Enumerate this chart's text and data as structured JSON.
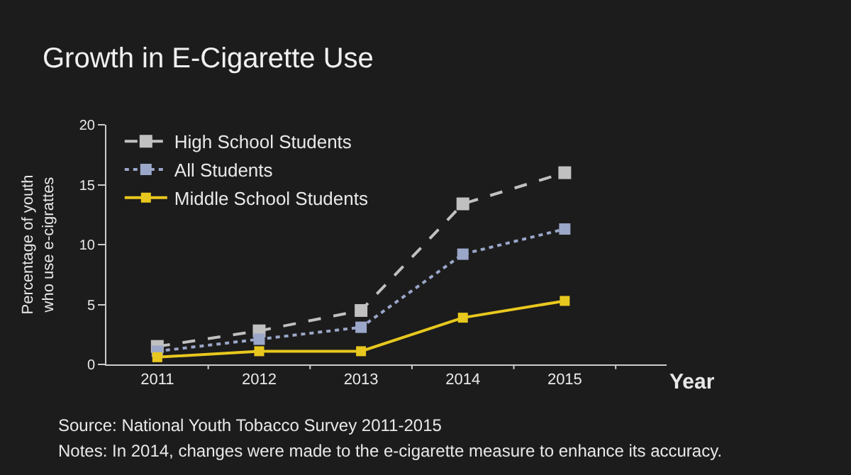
{
  "chart_data": {
    "type": "line",
    "title": "Growth in E-Cigarette Use",
    "xlabel": "Year",
    "ylabel": "Percentage of youth\nwho use e-cigrattes",
    "categories": [
      "2011",
      "2012",
      "2013",
      "2014",
      "2015"
    ],
    "series": [
      {
        "name": "High School Students",
        "color": "#c0c0c0",
        "line_style": "dashed",
        "values": [
          1.5,
          2.8,
          4.5,
          13.4,
          16.0
        ]
      },
      {
        "name": "All Students",
        "color": "#9ba7c9",
        "line_style": "dotted",
        "values": [
          1.1,
          2.1,
          3.1,
          9.2,
          11.3
        ]
      },
      {
        "name": "Middle School Students",
        "color": "#e8c81e",
        "line_style": "solid",
        "values": [
          0.6,
          1.1,
          1.1,
          3.9,
          5.3
        ]
      }
    ],
    "ylim": [
      0,
      20
    ],
    "yticks": [
      0,
      5,
      10,
      15,
      20
    ],
    "grid": false,
    "legend": "top left",
    "marker": "square",
    "annotations": [
      "Source: National Youth Tobacco Survey 2011-2015",
      "Notes: In 2014, changes were made to the e-cigarette measure to enhance its accuracy."
    ]
  }
}
